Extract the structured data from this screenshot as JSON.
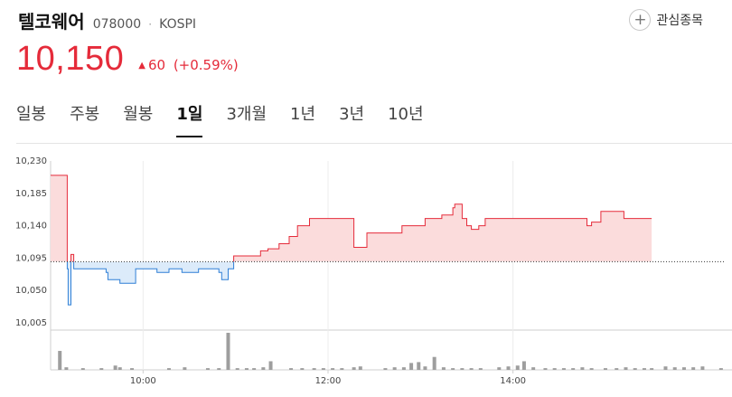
{
  "stock": {
    "name": "텔코웨어",
    "code": "078000",
    "separator": "·",
    "market": "KOSPI",
    "price": "10,150",
    "change_arrow": "▲",
    "change": "60",
    "change_pct": "(+0.59%)",
    "watch_label": "관심종목",
    "watch_icon": "plus-icon"
  },
  "tabs": [
    {
      "label": "일봉"
    },
    {
      "label": "주봉"
    },
    {
      "label": "월봉"
    },
    {
      "label": "1일",
      "active": true
    },
    {
      "label": "3개월"
    },
    {
      "label": "1년"
    },
    {
      "label": "3년"
    },
    {
      "label": "10년"
    }
  ],
  "colors": {
    "up": "#e52b3a",
    "up_fill": "#fbdcdc",
    "down": "#2f7fd6",
    "down_fill": "#dcebfa",
    "volume": "#9e9e9e",
    "baseline": "#333333"
  },
  "chart_data": {
    "type": "area",
    "baseline": 10090,
    "ylim": [
      10005,
      10230
    ],
    "yticks": [
      "10,230",
      "10,185",
      "10,140",
      "10,095",
      "10,050",
      "10,005"
    ],
    "xtick_labels": [
      "10:00",
      "12:00",
      "14:00"
    ],
    "x_tick_hours": [
      10,
      12,
      14
    ],
    "grid": true,
    "series": [
      {
        "x": [
          9.0,
          9.17,
          9.18,
          9.19,
          9.22,
          9.25,
          9.5,
          9.6,
          9.62,
          9.75,
          9.92,
          10.15,
          10.28,
          10.42,
          10.6,
          10.75,
          10.82,
          10.85,
          10.87,
          10.92,
          10.98,
          11.2,
          11.27,
          11.35,
          11.47,
          11.58,
          11.67,
          11.8,
          12.15,
          12.28,
          12.35,
          12.42,
          12.67,
          12.8,
          13.05,
          13.23,
          13.35,
          13.37,
          13.45,
          13.5,
          13.55,
          13.63,
          13.7,
          14.65,
          14.8,
          14.85,
          14.95,
          15.2,
          15.5
        ],
        "y": [
          10210,
          10210,
          10080,
          10030,
          10100,
          10080,
          10080,
          10075,
          10065,
          10060,
          10080,
          10075,
          10080,
          10075,
          10080,
          10080,
          10075,
          10065,
          10065,
          10080,
          10098,
          10098,
          10105,
          10108,
          10115,
          10125,
          10140,
          10150,
          10150,
          10110,
          10110,
          10130,
          10130,
          10140,
          10150,
          10155,
          10165,
          10170,
          10150,
          10140,
          10135,
          10140,
          10150,
          10150,
          10140,
          10145,
          10160,
          10150,
          10150
        ]
      }
    ],
    "volume": [
      {
        "t": 9.1,
        "v": 22
      },
      {
        "t": 9.17,
        "v": 3
      },
      {
        "t": 9.35,
        "v": 2
      },
      {
        "t": 9.55,
        "v": 2
      },
      {
        "t": 9.7,
        "v": 5
      },
      {
        "t": 9.75,
        "v": 3
      },
      {
        "t": 9.88,
        "v": 2
      },
      {
        "t": 10.28,
        "v": 2
      },
      {
        "t": 10.45,
        "v": 3
      },
      {
        "t": 10.7,
        "v": 2
      },
      {
        "t": 10.82,
        "v": 2
      },
      {
        "t": 10.92,
        "v": 43
      },
      {
        "t": 11.02,
        "v": 2
      },
      {
        "t": 11.12,
        "v": 2
      },
      {
        "t": 11.2,
        "v": 2
      },
      {
        "t": 11.3,
        "v": 3
      },
      {
        "t": 11.38,
        "v": 10
      },
      {
        "t": 11.6,
        "v": 2
      },
      {
        "t": 11.72,
        "v": 2
      },
      {
        "t": 11.85,
        "v": 2
      },
      {
        "t": 11.95,
        "v": 2
      },
      {
        "t": 12.05,
        "v": 2
      },
      {
        "t": 12.15,
        "v": 2
      },
      {
        "t": 12.28,
        "v": 3
      },
      {
        "t": 12.35,
        "v": 4
      },
      {
        "t": 12.62,
        "v": 2
      },
      {
        "t": 12.72,
        "v": 3
      },
      {
        "t": 12.82,
        "v": 3
      },
      {
        "t": 12.9,
        "v": 8
      },
      {
        "t": 12.98,
        "v": 9
      },
      {
        "t": 13.05,
        "v": 4
      },
      {
        "t": 13.15,
        "v": 15
      },
      {
        "t": 13.25,
        "v": 3
      },
      {
        "t": 13.35,
        "v": 2
      },
      {
        "t": 13.45,
        "v": 2
      },
      {
        "t": 13.55,
        "v": 2
      },
      {
        "t": 13.65,
        "v": 2
      },
      {
        "t": 13.85,
        "v": 3
      },
      {
        "t": 13.95,
        "v": 4
      },
      {
        "t": 14.05,
        "v": 5
      },
      {
        "t": 14.12,
        "v": 10
      },
      {
        "t": 14.22,
        "v": 3
      },
      {
        "t": 14.35,
        "v": 2
      },
      {
        "t": 14.45,
        "v": 2
      },
      {
        "t": 14.55,
        "v": 2
      },
      {
        "t": 14.65,
        "v": 2
      },
      {
        "t": 14.75,
        "v": 3
      },
      {
        "t": 14.85,
        "v": 2
      },
      {
        "t": 15.0,
        "v": 2
      },
      {
        "t": 15.12,
        "v": 2
      },
      {
        "t": 15.22,
        "v": 3
      },
      {
        "t": 15.32,
        "v": 2
      },
      {
        "t": 15.42,
        "v": 2
      },
      {
        "t": 15.5,
        "v": 2
      },
      {
        "t": 15.65,
        "v": 4
      },
      {
        "t": 15.75,
        "v": 3
      },
      {
        "t": 15.85,
        "v": 3
      },
      {
        "t": 15.95,
        "v": 3
      },
      {
        "t": 16.05,
        "v": 4
      },
      {
        "t": 16.25,
        "v": 2
      }
    ]
  }
}
